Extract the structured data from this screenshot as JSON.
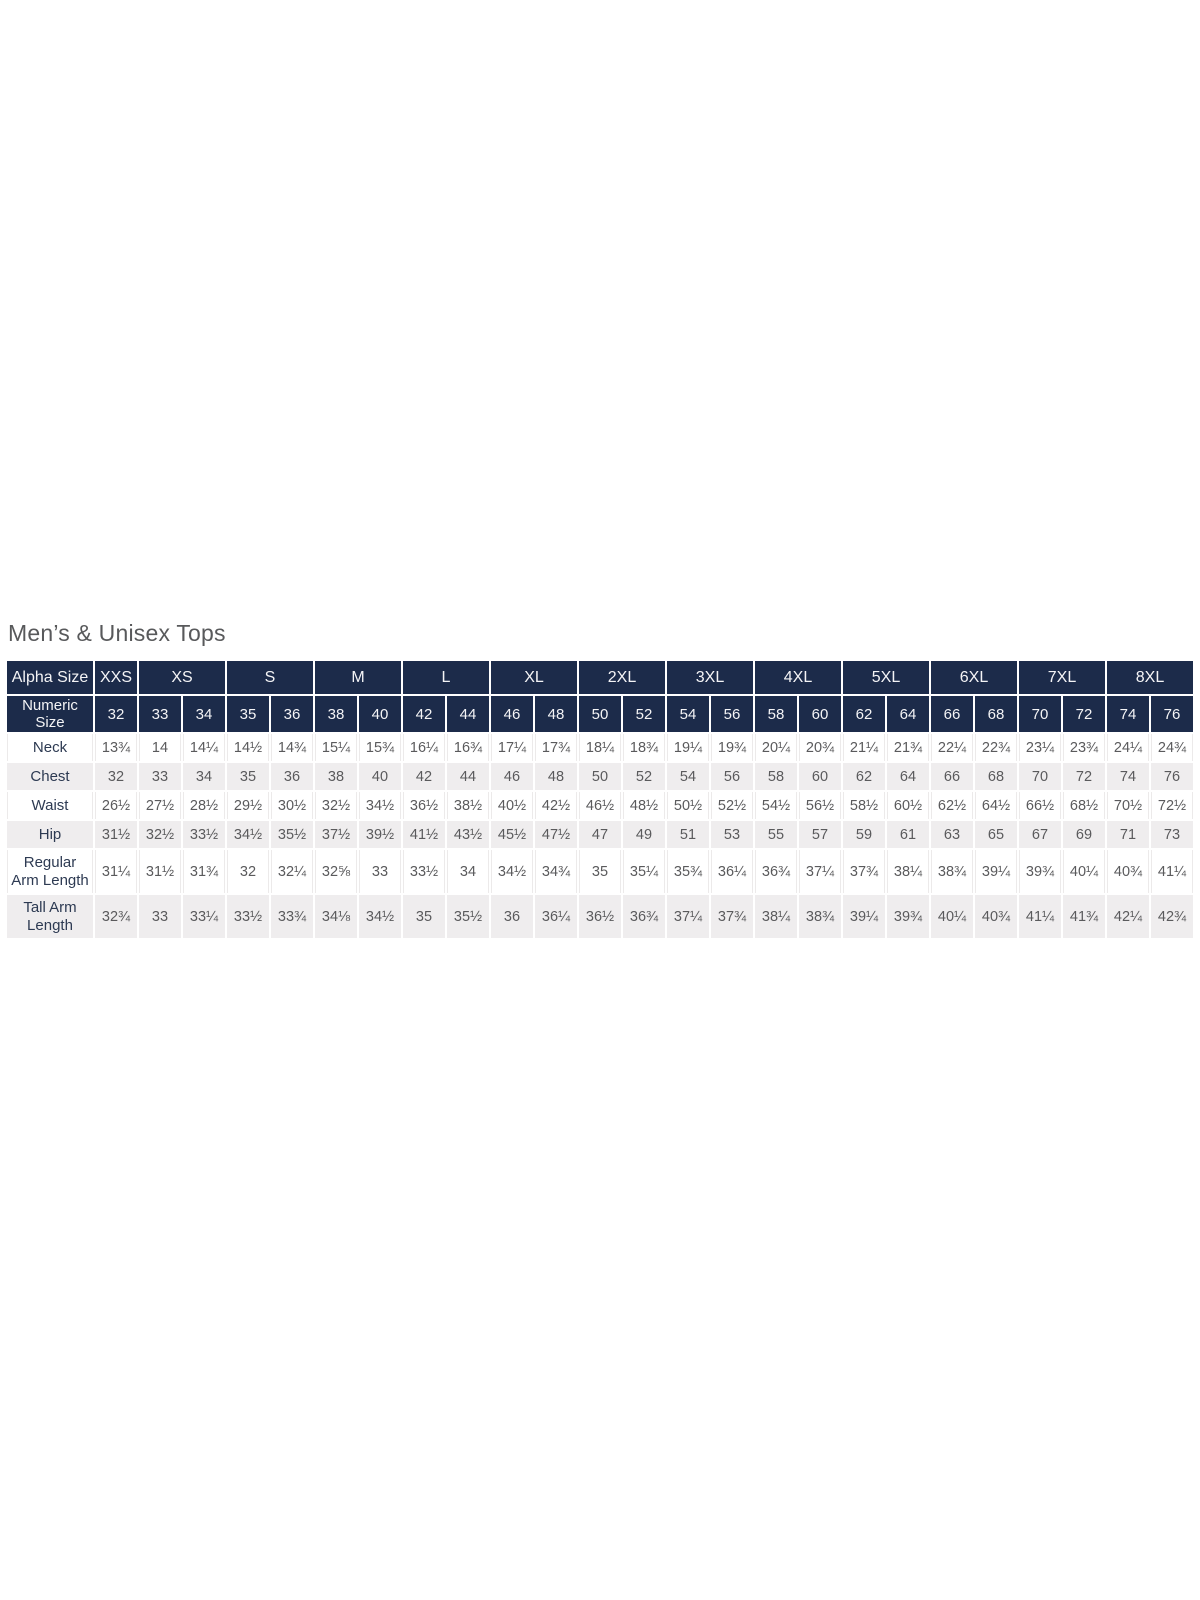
{
  "colors": {
    "header_navy": "#1c2b4a",
    "header_text": "#f4f4f6",
    "row_alt_gray": "#efedee",
    "row_white": "#ffffff",
    "label_text": "#2d3a52",
    "value_text": "#5a5a5c",
    "title_text": "#58595b"
  },
  "chart_data": {
    "type": "table",
    "title": "Men’s & Unisex Tops",
    "header": {
      "alpha_label": "Alpha Size",
      "numeric_label": "Numeric Size",
      "alpha_groups": [
        {
          "label": "XXS",
          "span": 1
        },
        {
          "label": "XS",
          "span": 2
        },
        {
          "label": "S",
          "span": 2
        },
        {
          "label": "M",
          "span": 2
        },
        {
          "label": "L",
          "span": 2
        },
        {
          "label": "XL",
          "span": 2
        },
        {
          "label": "2XL",
          "span": 2
        },
        {
          "label": "3XL",
          "span": 2
        },
        {
          "label": "4XL",
          "span": 2
        },
        {
          "label": "5XL",
          "span": 2
        },
        {
          "label": "6XL",
          "span": 2
        },
        {
          "label": "7XL",
          "span": 2
        },
        {
          "label": "8XL",
          "span": 2
        }
      ],
      "numeric_sizes": [
        "32",
        "33",
        "34",
        "35",
        "36",
        "38",
        "40",
        "42",
        "44",
        "46",
        "48",
        "50",
        "52",
        "54",
        "56",
        "58",
        "60",
        "62",
        "64",
        "66",
        "68",
        "70",
        "72",
        "74",
        "76"
      ]
    },
    "rows": [
      {
        "label": "Neck",
        "values": [
          "13¾",
          "14",
          "14¼",
          "14½",
          "14¾",
          "15¼",
          "15¾",
          "16¼",
          "16¾",
          "17¼",
          "17¾",
          "18¼",
          "18¾",
          "19¼",
          "19¾",
          "20¼",
          "20¾",
          "21¼",
          "21¾",
          "22¼",
          "22¾",
          "23¼",
          "23¾",
          "24¼",
          "24¾"
        ]
      },
      {
        "label": "Chest",
        "values": [
          "32",
          "33",
          "34",
          "35",
          "36",
          "38",
          "40",
          "42",
          "44",
          "46",
          "48",
          "50",
          "52",
          "54",
          "56",
          "58",
          "60",
          "62",
          "64",
          "66",
          "68",
          "70",
          "72",
          "74",
          "76"
        ]
      },
      {
        "label": "Waist",
        "values": [
          "26½",
          "27½",
          "28½",
          "29½",
          "30½",
          "32½",
          "34½",
          "36½",
          "38½",
          "40½",
          "42½",
          "46½",
          "48½",
          "50½",
          "52½",
          "54½",
          "56½",
          "58½",
          "60½",
          "62½",
          "64½",
          "66½",
          "68½",
          "70½",
          "72½"
        ]
      },
      {
        "label": "Hip",
        "values": [
          "31½",
          "32½",
          "33½",
          "34½",
          "35½",
          "37½",
          "39½",
          "41½",
          "43½",
          "45½",
          "47½",
          "47",
          "49",
          "51",
          "53",
          "55",
          "57",
          "59",
          "61",
          "63",
          "65",
          "67",
          "69",
          "71",
          "73"
        ]
      },
      {
        "label": "Regular Arm Length",
        "values": [
          "31¼",
          "31½",
          "31¾",
          "32",
          "32¼",
          "32⅝",
          "33",
          "33½",
          "34",
          "34½",
          "34¾",
          "35",
          "35¼",
          "35¾",
          "36¼",
          "36¾",
          "37¼",
          "37¾",
          "38¼",
          "38¾",
          "39¼",
          "39¾",
          "40¼",
          "40¾",
          "41¼"
        ]
      },
      {
        "label": "Tall Arm Length",
        "values": [
          "32¾",
          "33",
          "33¼",
          "33½",
          "33¾",
          "34⅛",
          "34½",
          "35",
          "35½",
          "36",
          "36¼",
          "36½",
          "36¾",
          "37¼",
          "37¾",
          "38¼",
          "38¾",
          "39¼",
          "39¾",
          "40¼",
          "40¾",
          "41¼",
          "41¾",
          "42¼",
          "42¾"
        ]
      }
    ]
  }
}
